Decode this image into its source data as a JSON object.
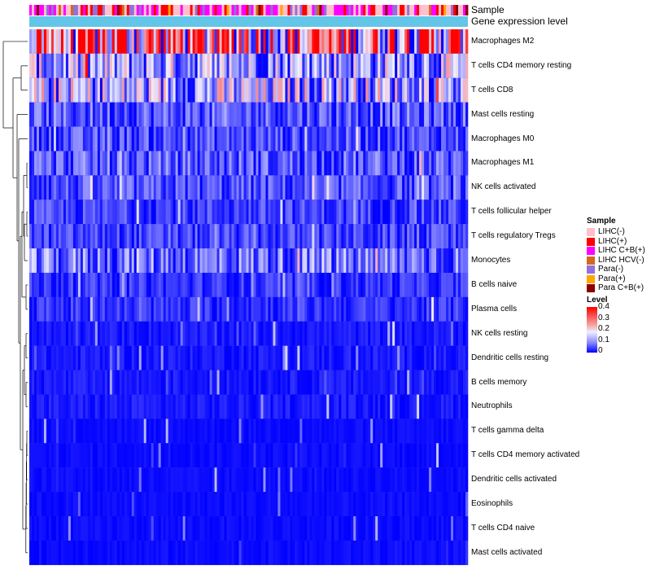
{
  "chart_data": {
    "type": "heatmap",
    "title": "",
    "annotation_tracks": [
      "Sample",
      "Gene expression level"
    ],
    "rows": [
      "Macrophages M2",
      "T cells CD4 memory resting",
      "T cells CD8",
      "Mast cells resting",
      "Macrophages M0",
      "Macrophages M1",
      "NK cells activated",
      "T cells follicular helper",
      "T cells regulatory  Tregs",
      "Monocytes",
      "B cells naive",
      "Plasma cells",
      "NK cells resting",
      "Dendritic cells resting",
      "B cells memory",
      "Neutrophils",
      "T cells gamma delta",
      "T cells CD4 memory activated",
      "Dendritic cells activated",
      "Eosinophils",
      "T cells CD4 naive",
      "Mast cells activated"
    ],
    "row_mean_levels": [
      0.28,
      0.13,
      0.14,
      0.07,
      0.06,
      0.07,
      0.06,
      0.05,
      0.05,
      0.09,
      0.04,
      0.04,
      0.02,
      0.02,
      0.02,
      0.02,
      0.01,
      0.01,
      0.01,
      0.01,
      0.01,
      0.01
    ],
    "n_samples": 540,
    "sample_legend": {
      "title": "Sample",
      "items": [
        {
          "label": "LIHC(-)",
          "color": "#ffc0cb"
        },
        {
          "label": "LIHC(+)",
          "color": "#ff0000"
        },
        {
          "label": "LIHC C+B(+)",
          "color": "#ff00ff"
        },
        {
          "label": "LIHC HCV(-)",
          "color": "#d2691e"
        },
        {
          "label": "Para(-)",
          "color": "#9370db"
        },
        {
          "label": "Para(+)",
          "color": "#ffa500"
        },
        {
          "label": "Para C+B(+)",
          "color": "#8b0000"
        }
      ]
    },
    "level_legend": {
      "title": "Level",
      "range": [
        0,
        0.4
      ],
      "ticks": [
        "0.4",
        "0.3",
        "0.2",
        "0.1",
        "0"
      ]
    },
    "expression_track_color": "#63c6e8",
    "colors": {
      "low": "#0000ff",
      "mid": "#eeeeff",
      "high": "#ff0000"
    }
  }
}
